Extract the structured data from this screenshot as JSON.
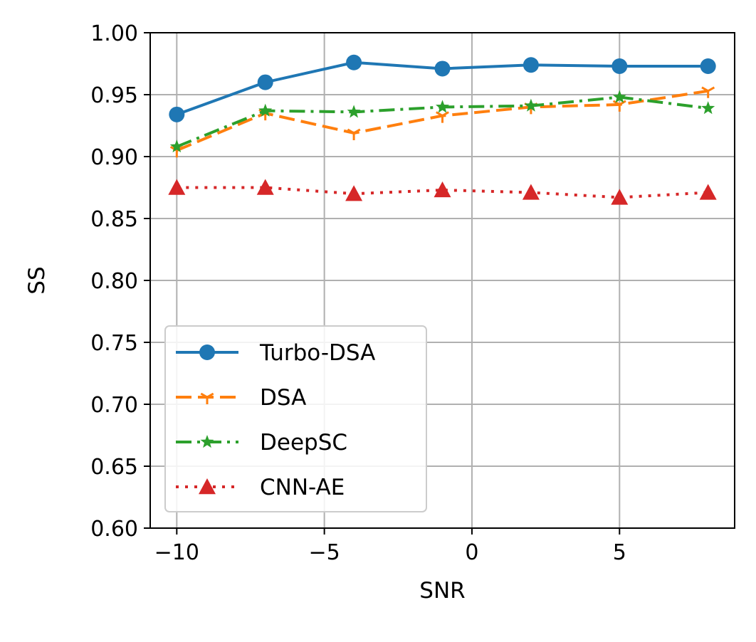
{
  "chart_data": {
    "type": "line",
    "title": "",
    "xlabel": "SNR",
    "ylabel": "SS",
    "xlim": [
      -10.9,
      8.9
    ],
    "ylim": [
      0.6,
      1.0
    ],
    "grid": true,
    "legend_position": "lower-left",
    "x": [
      -10,
      -7,
      -4,
      -1,
      2,
      5,
      8
    ],
    "x_ticks": [
      -10,
      -5,
      0,
      5
    ],
    "x_tick_labels": [
      "−10",
      "−5",
      "0",
      "5"
    ],
    "y_ticks": [
      0.6,
      0.65,
      0.7,
      0.75,
      0.8,
      0.85,
      0.9,
      0.95,
      1.0
    ],
    "y_tick_labels": [
      "0.60",
      "0.65",
      "0.70",
      "0.75",
      "0.80",
      "0.85",
      "0.90",
      "0.95",
      "1.00"
    ],
    "series": [
      {
        "name": "Turbo-DSA",
        "color": "#1f77b4",
        "linestyle": "solid",
        "marker": "circle",
        "values": [
          0.934,
          0.96,
          0.976,
          0.971,
          0.974,
          0.973,
          0.973
        ]
      },
      {
        "name": "DSA",
        "color": "#ff7f0e",
        "linestyle": "dashed",
        "marker": "tri-down",
        "values": [
          0.905,
          0.935,
          0.919,
          0.933,
          0.94,
          0.942,
          0.953
        ]
      },
      {
        "name": "DeepSC",
        "color": "#2ca02c",
        "linestyle": "dashdot",
        "marker": "star",
        "values": [
          0.908,
          0.937,
          0.936,
          0.94,
          0.941,
          0.948,
          0.939
        ]
      },
      {
        "name": "CNN-AE",
        "color": "#d62728",
        "linestyle": "dotted",
        "marker": "triangle",
        "values": [
          0.875,
          0.875,
          0.87,
          0.873,
          0.871,
          0.867,
          0.871
        ]
      }
    ]
  }
}
